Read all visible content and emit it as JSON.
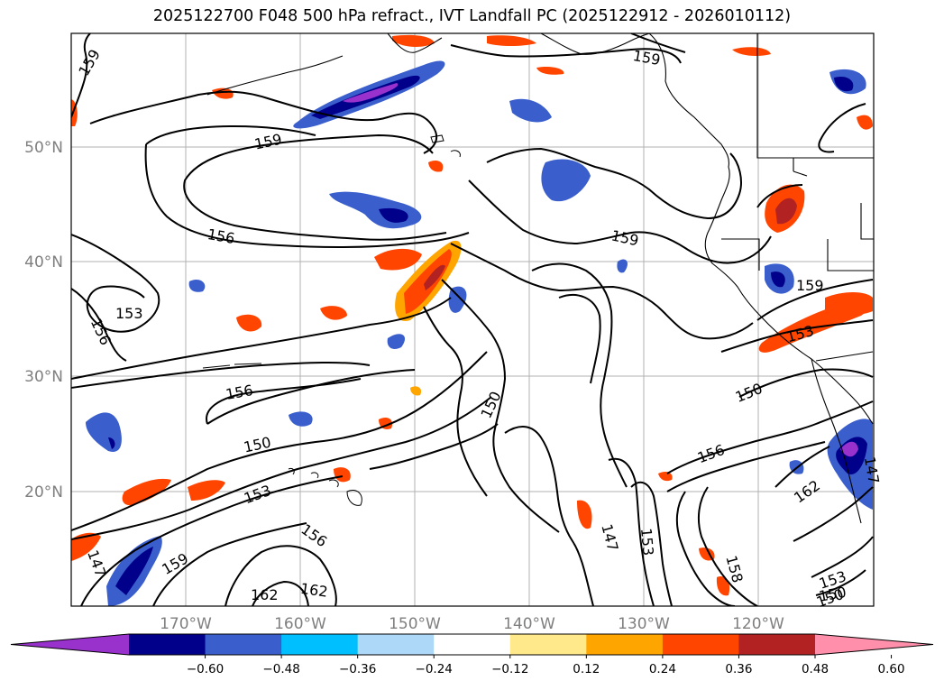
{
  "title": "2025122700 F048 500 hPa refract., IVT Landfall PC (2025122912 - 2026010112)",
  "map": {
    "lon_labels": [
      "170°W",
      "160°W",
      "150°W",
      "140°W",
      "130°W",
      "120°W"
    ],
    "lat_labels": [
      "50°N",
      "40°N",
      "30°N",
      "20°N"
    ],
    "gridlines": true,
    "fields": [
      "500 hPa refractivity contours",
      "IVT Landfall PC shading"
    ]
  },
  "contour_labels": [
    "159",
    "159",
    "159",
    "159",
    "159",
    "156",
    "156",
    "156",
    "156",
    "153",
    "153",
    "153",
    "150",
    "150",
    "150",
    "150",
    "147",
    "147",
    "162",
    "162",
    "162",
    "156",
    "158",
    "153",
    "153",
    "150",
    "159",
    "147"
  ],
  "colorbar": {
    "ticks": [
      "−0.60",
      "−0.48",
      "−0.36",
      "−0.24",
      "−0.12",
      "0.12",
      "0.24",
      "0.36",
      "0.48",
      "0.60"
    ],
    "colors": [
      "#9932cc",
      "#00008b",
      "#3a5fcd",
      "#00bfff",
      "#add8f7",
      "#ffffff",
      "#ffe98a",
      "#ffa500",
      "#ff4500",
      "#b22222",
      "#ff8fab"
    ],
    "extend": "both"
  }
}
